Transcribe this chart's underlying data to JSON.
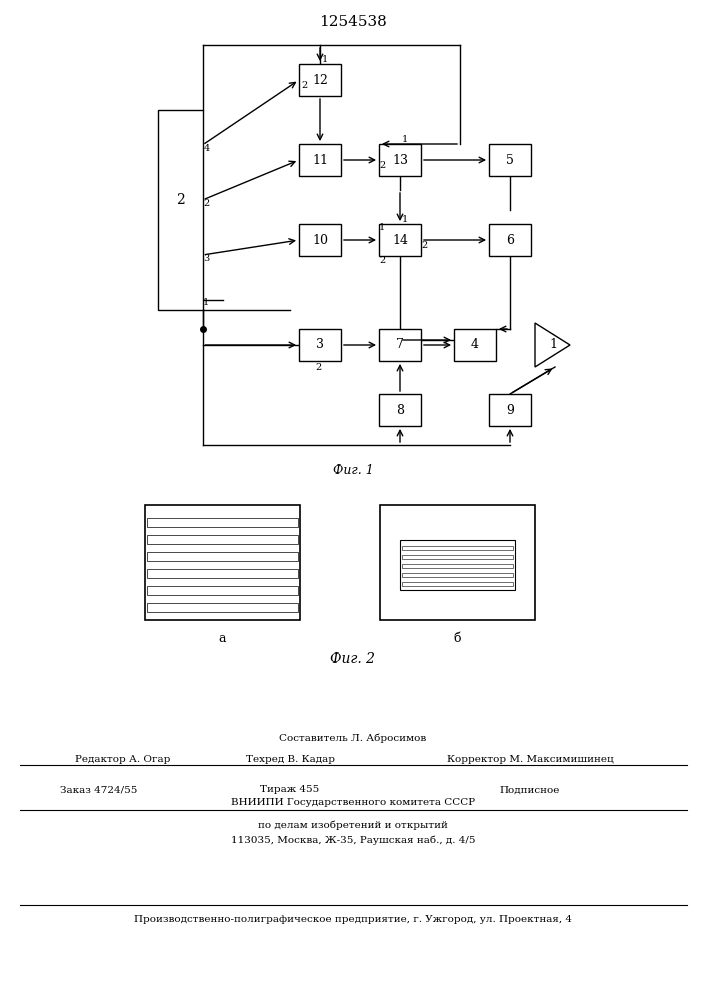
{
  "title": "1254538",
  "fig1_caption": "Фиг. 1",
  "fig2_caption": "Фиг. 2",
  "fig2a_label": "а",
  "fig2b_label": "б",
  "bottom_text_line1": "Составитель Л. Абросимов",
  "bottom_text_line2_left": "Редактор А. Огар",
  "bottom_text_line2_mid": "Техред В. Кадар",
  "bottom_text_line2_right": "Корректор М. Максимишинец",
  "bottom_text_line3_left": "Заказ 4724/55",
  "bottom_text_line3_mid": "Тираж 455",
  "bottom_text_line3_right": "Подписное",
  "bottom_text_line4": "ВНИИПИ Государственного комитета СССР",
  "bottom_text_line5": "по делам изобретений и открытий",
  "bottom_text_line6": "113035, Москва, Ж-35, Раушская наб., д. 4/5",
  "bottom_text_line7": "Производственно-полиграфическое предприятие, г. Ужгород, ул. Проектная, 4",
  "bg_color": "#f5f5f0"
}
